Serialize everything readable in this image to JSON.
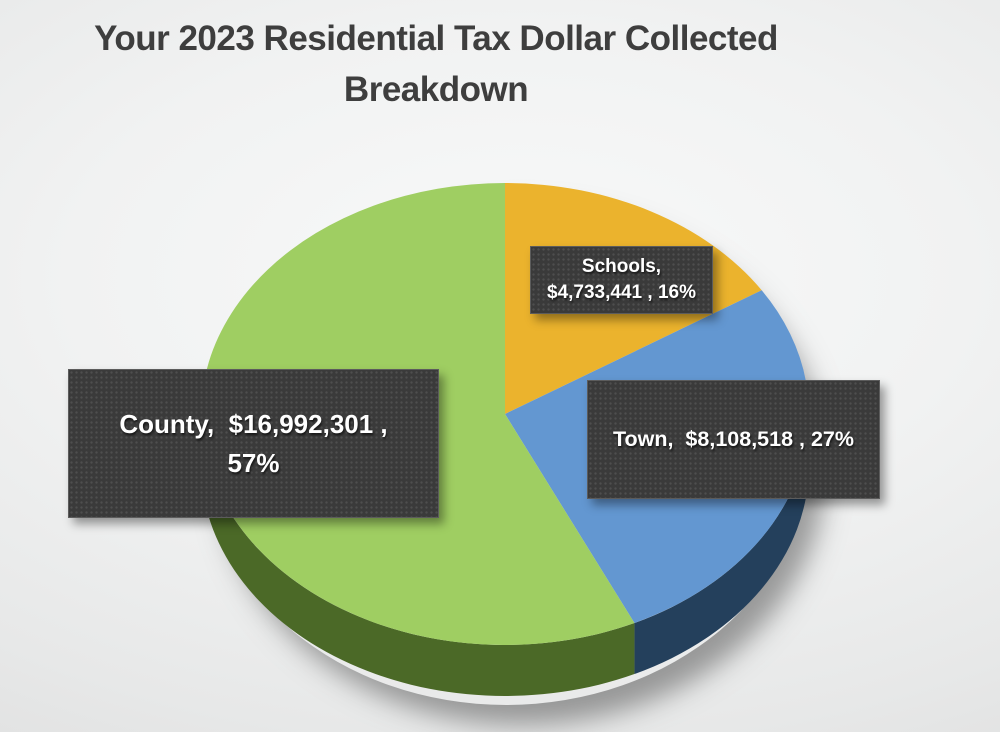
{
  "title": {
    "line1": "Your 2023 Residential Tax Dollar Collected",
    "line2": "Breakdown"
  },
  "chart_data": {
    "type": "pie",
    "style": "3d",
    "title": "Your 2023 Residential Tax Dollar Collected Breakdown",
    "direction": "clockwise",
    "start_angle_deg": 0,
    "legend": "none",
    "slices": [
      {
        "label": "Schools",
        "value": 4733441,
        "display_value": "$4,733,441",
        "pct": 16,
        "color": "#ebb32d",
        "side_color": "#8a6410"
      },
      {
        "label": "Town",
        "value": 8108518,
        "display_value": "$8,108,518",
        "pct": 27,
        "color": "#6397d1",
        "side_color": "#24405c"
      },
      {
        "label": "County",
        "value": 16992301,
        "display_value": "$16,992,301",
        "pct": 57,
        "color": "#9fce62",
        "side_color": "#4b6927"
      }
    ]
  },
  "data_labels": {
    "schools": {
      "line1": "Schools,",
      "line2": "$4,733,441 , 16%"
    },
    "county": {
      "line1": "County,  $16,992,301 ,",
      "line2": "57%"
    },
    "town": {
      "line1": "Town,  $8,108,518 , 27%"
    }
  },
  "colors": {
    "title_text": "#3e3e3e",
    "label_box_bg": "#3a3a3a",
    "label_box_border": "#5c5c5c",
    "label_text": "#ffffff",
    "background_center": "#f8f9f9",
    "background_edge": "#cecece"
  }
}
